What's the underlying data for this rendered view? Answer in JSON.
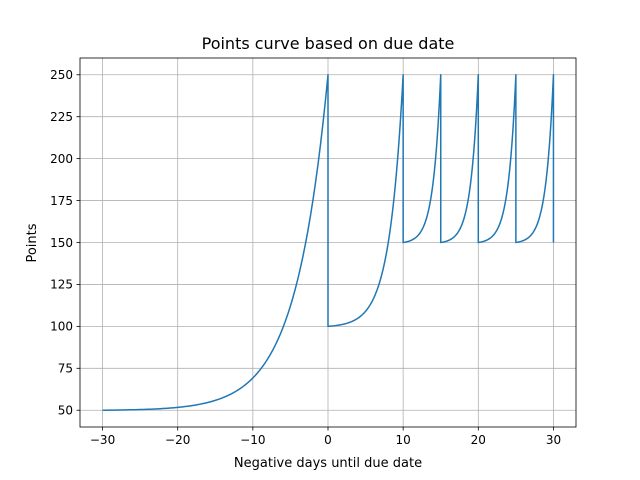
{
  "chart_data": {
    "type": "line",
    "title": "Points curve based on due date",
    "xlabel": "Negative days until due date",
    "ylabel": "Points",
    "xlim": [
      -33,
      33
    ],
    "ylim": [
      40,
      260
    ],
    "xticks": [
      -30,
      -20,
      -10,
      0,
      10,
      20,
      30
    ],
    "yticks": [
      50,
      75,
      100,
      125,
      150,
      175,
      200,
      225,
      250
    ],
    "grid": true,
    "line_color": "#1f77b4",
    "series": [
      {
        "segments": [
          {
            "x_start": -30,
            "x_end": 0,
            "y_start": 50,
            "y_end": 250,
            "curvature": 7.0
          },
          {
            "x_start": 0,
            "x_end": 10,
            "y_start": 100,
            "y_end": 250,
            "curvature": 5.5
          },
          {
            "x_start": 10,
            "x_end": 15,
            "y_start": 150,
            "y_end": 250,
            "curvature": 5.0
          },
          {
            "x_start": 15,
            "x_end": 20,
            "y_start": 150,
            "y_end": 250,
            "curvature": 5.0
          },
          {
            "x_start": 20,
            "x_end": 25,
            "y_start": 150,
            "y_end": 250,
            "curvature": 5.0
          },
          {
            "x_start": 25,
            "x_end": 30,
            "y_start": 150,
            "y_end": 250,
            "curvature": 5.0
          }
        ]
      }
    ]
  }
}
